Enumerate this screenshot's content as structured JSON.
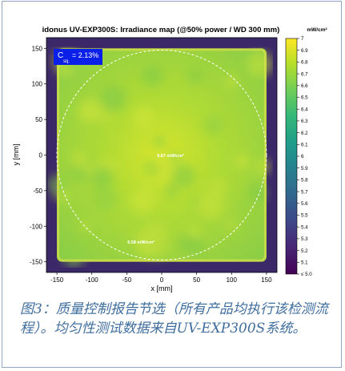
{
  "chart_data": {
    "type": "heatmap",
    "title": "idonus UV-EXP300S: Irradiance map (@50% power / WD 300 mm)",
    "xlabel": "x [mm]",
    "ylabel": "y [mm]",
    "xlim": [
      -165,
      165
    ],
    "ylim": [
      -165,
      165
    ],
    "x_ticks": [
      -150,
      -100,
      -50,
      0,
      50,
      100,
      150
    ],
    "y_ticks": [
      150,
      100,
      50,
      0,
      -50,
      -100,
      -150
    ],
    "exposure_region": {
      "x": [
        -150,
        150
      ],
      "y": [
        -150,
        150
      ]
    },
    "value_range": [
      5.0,
      7.0
    ],
    "colorbar": {
      "unit": "mW/cm²",
      "ticks": [
        "7",
        "6.9",
        "6.8",
        "6.7",
        "6.6",
        "6.5",
        "6.4",
        "6.3",
        "6.2",
        "6.1",
        "6",
        "5.9",
        "5.8",
        "5.7",
        "5.6",
        "5.5",
        "5.4",
        "5.3",
        "5.2",
        "5.1",
        "≤ 5.0"
      ],
      "colormap": [
        "#fde725",
        "#b5de2b",
        "#6ece58",
        "#35b779",
        "#1f9e89",
        "#26828e",
        "#31688e",
        "#3e4989",
        "#482878",
        "#440154"
      ]
    },
    "annotations": {
      "center_value": "6.87 mW/cm²",
      "edge_value": "6.58 mW/cm²",
      "uniformity_label": "C",
      "uniformity_sub": "sq.",
      "uniformity_value": "= 2.13%"
    },
    "circle_radius": 150
  },
  "caption": "图3：质量控制报告节选（所有产品均执行该检测流程）。均匀性测试数据来自UV-EXP300S系统。"
}
